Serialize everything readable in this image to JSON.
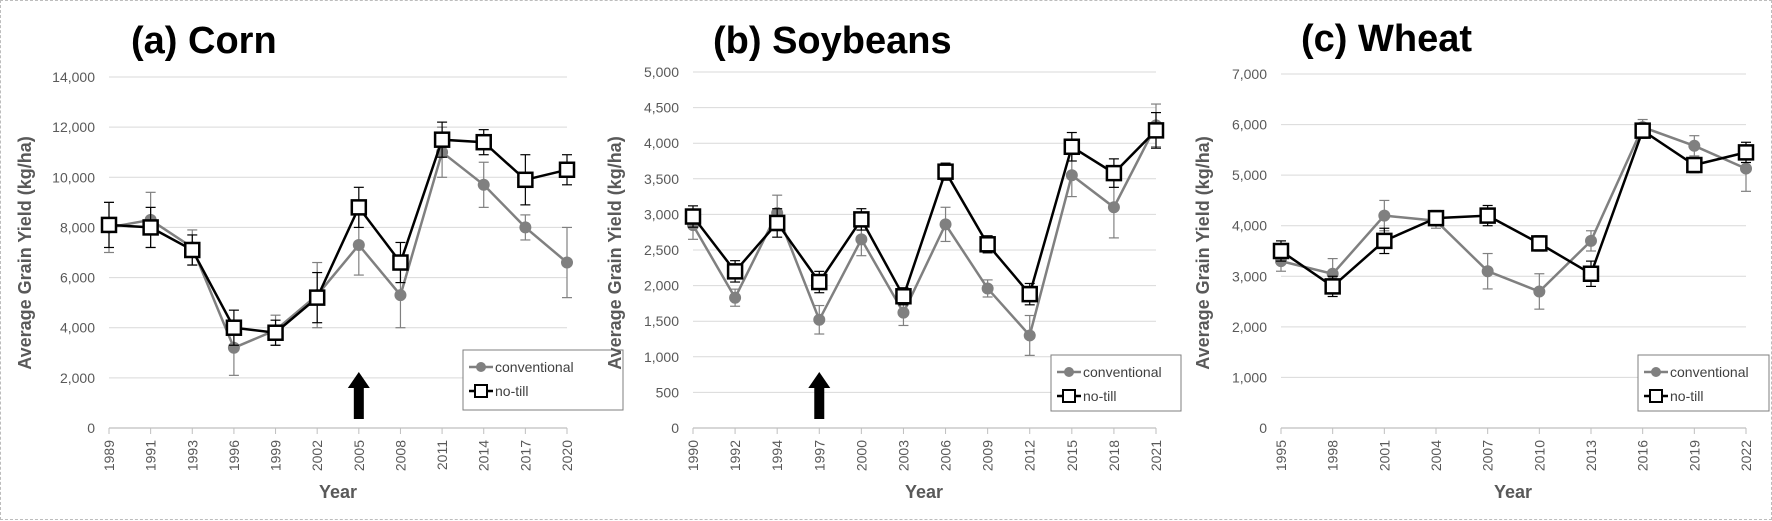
{
  "chart_data": [
    {
      "type": "line",
      "title": "(a) Corn",
      "xlabel": "Year",
      "ylabel": "Average Grain Yield (kg/ha)",
      "ylim": [
        0,
        14000
      ],
      "y_ticks": [
        0,
        2000,
        4000,
        6000,
        8000,
        10000,
        12000,
        14000
      ],
      "y_tick_labels": [
        "0",
        "2,000",
        "4,000",
        "6,000",
        "8,000",
        "10,000",
        "12,000",
        "14,000"
      ],
      "categories": [
        "1989",
        "1991",
        "1993",
        "1996",
        "1999",
        "2002",
        "2005",
        "2008",
        "2011",
        "2014",
        "2017",
        "2020"
      ],
      "series": [
        {
          "name": "conventional",
          "color": "#808080",
          "marker": "circle",
          "values": [
            8000,
            8300,
            7200,
            3200,
            3900,
            5300,
            7300,
            5300,
            11000,
            9700,
            8000,
            6600
          ],
          "err": [
            1000,
            1100,
            700,
            1100,
            600,
            1300,
            1200,
            1300,
            1000,
            900,
            500,
            1400
          ]
        },
        {
          "name": "no-till",
          "color": "#000000",
          "marker": "square",
          "values": [
            8100,
            8000,
            7100,
            4000,
            3800,
            5200,
            8800,
            6600,
            11500,
            11400,
            9900,
            10300
          ],
          "err": [
            900,
            800,
            600,
            700,
            500,
            1000,
            800,
            800,
            700,
            500,
            1000,
            600
          ]
        }
      ],
      "arrow_at": "2005",
      "legend": "bottom-right",
      "grid": "horizontal"
    },
    {
      "type": "line",
      "title": "(b) Soybeans",
      "xlabel": "Year",
      "ylabel": "Average Grain Yield (kg/ha)",
      "ylim": [
        0,
        5000
      ],
      "y_ticks": [
        0,
        500,
        1000,
        1500,
        2000,
        2500,
        3000,
        3500,
        4000,
        4500,
        5000
      ],
      "y_tick_labels": [
        "0",
        "500",
        "1,000",
        "1,500",
        "2,000",
        "2,500",
        "3,000",
        "3,500",
        "4,000",
        "4,500",
        "5,000"
      ],
      "categories": [
        "1990",
        "1992",
        "1994",
        "1997",
        "2000",
        "2003",
        "2006",
        "2009",
        "2012",
        "2015",
        "2018",
        "2021"
      ],
      "series": [
        {
          "name": "conventional",
          "color": "#808080",
          "marker": "circle",
          "values": [
            2850,
            1830,
            3020,
            1520,
            2650,
            1620,
            2860,
            1960,
            1300,
            3550,
            3100,
            4250
          ],
          "err": [
            200,
            120,
            250,
            200,
            230,
            180,
            240,
            120,
            280,
            300,
            430,
            300
          ]
        },
        {
          "name": "no-till",
          "color": "#000000",
          "marker": "square",
          "values": [
            2970,
            2200,
            2880,
            2050,
            2930,
            1850,
            3600,
            2580,
            1880,
            3950,
            3580,
            4180
          ],
          "err": [
            150,
            150,
            200,
            150,
            150,
            120,
            120,
            120,
            150,
            200,
            200,
            250
          ]
        }
      ],
      "arrow_at": "1997",
      "legend": "bottom-right",
      "grid": "horizontal"
    },
    {
      "type": "line",
      "title": "(c) Wheat",
      "xlabel": "Year",
      "ylabel": "Average Grain Yield (kg/ha)",
      "ylim": [
        0,
        7000
      ],
      "y_ticks": [
        0,
        1000,
        2000,
        3000,
        4000,
        5000,
        6000,
        7000
      ],
      "y_tick_labels": [
        "0",
        "1,000",
        "2,000",
        "3,000",
        "4,000",
        "5,000",
        "6,000",
        "7,000"
      ],
      "categories": [
        "1995",
        "1998",
        "2001",
        "2004",
        "2007",
        "2010",
        "2013",
        "2016",
        "2019",
        "2022"
      ],
      "series": [
        {
          "name": "conventional",
          "color": "#808080",
          "marker": "circle",
          "values": [
            3300,
            3050,
            4200,
            4100,
            3100,
            2700,
            3700,
            5950,
            5580,
            5130
          ],
          "err": [
            200,
            300,
            300,
            150,
            350,
            350,
            200,
            150,
            200,
            450
          ]
        },
        {
          "name": "no-till",
          "color": "#000000",
          "marker": "square",
          "values": [
            3500,
            2800,
            3700,
            4150,
            4200,
            3650,
            3050,
            5880,
            5200,
            5450
          ],
          "err": [
            200,
            200,
            250,
            150,
            200,
            150,
            250,
            150,
            150,
            200
          ]
        }
      ],
      "legend": "bottom-right",
      "grid": "horizontal"
    }
  ]
}
